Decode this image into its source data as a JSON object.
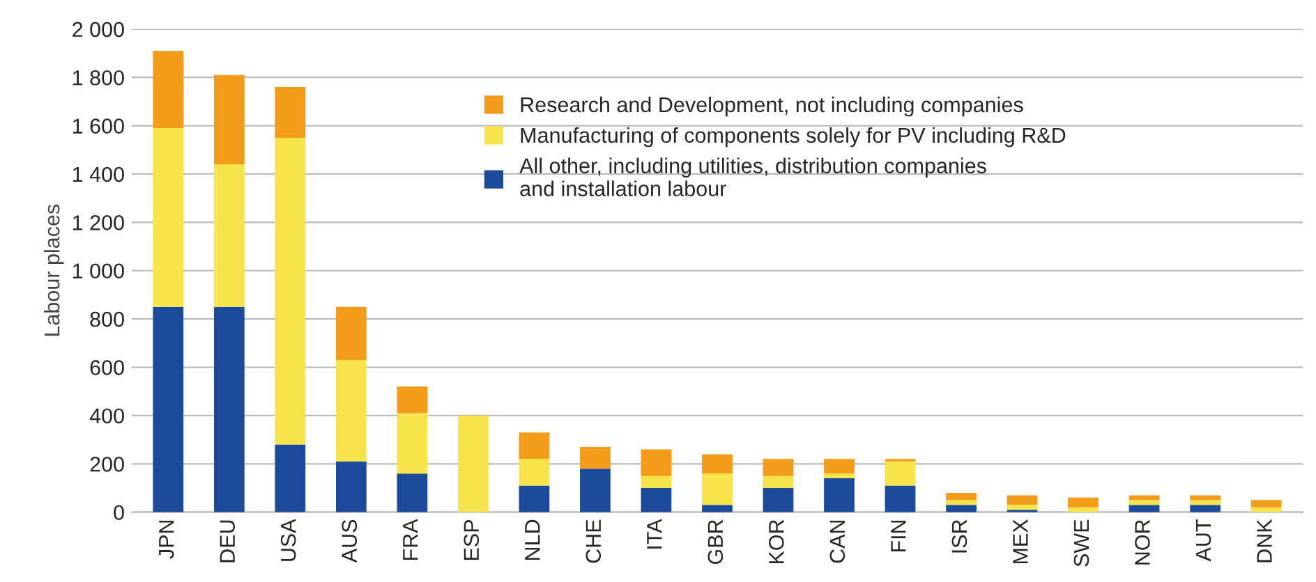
{
  "chart_data": {
    "type": "bar",
    "stacked": true,
    "ylabel": "Labour places",
    "categories": [
      "JPN",
      "DEU",
      "USA",
      "AUS",
      "FRA",
      "ESP",
      "NLD",
      "CHE",
      "ITA",
      "GBR",
      "KOR",
      "CAN",
      "FIN",
      "ISR",
      "MEX",
      "SWE",
      "NOR",
      "AUT",
      "DNK"
    ],
    "series": [
      {
        "name": "All other, including utilities, distribution companies\nand installation labour",
        "color": "#1c4b9c",
        "values": [
          850,
          850,
          280,
          210,
          160,
          0,
          110,
          180,
          100,
          30,
          100,
          140,
          110,
          30,
          10,
          0,
          30,
          30,
          0
        ]
      },
      {
        "name": "Manufacturing of components solely for PV including R&D",
        "color": "#f7e44c",
        "values": [
          740,
          590,
          1270,
          420,
          250,
          400,
          110,
          0,
          50,
          130,
          50,
          20,
          100,
          20,
          20,
          20,
          20,
          20,
          20
        ]
      },
      {
        "name": "Research and Development, not including companies",
        "color": "#f39c1c",
        "values": [
          320,
          370,
          210,
          220,
          110,
          0,
          110,
          90,
          110,
          80,
          70,
          60,
          10,
          30,
          40,
          40,
          20,
          20,
          30
        ]
      }
    ],
    "ylim": [
      0,
      2000
    ],
    "yticks": [
      {
        "value": 0,
        "label": "0"
      },
      {
        "value": 200,
        "label": "200"
      },
      {
        "value": 400,
        "label": "400"
      },
      {
        "value": 600,
        "label": "600"
      },
      {
        "value": 800,
        "label": "800"
      },
      {
        "value": 1000,
        "label": "1 000"
      },
      {
        "value": 1200,
        "label": "1 200"
      },
      {
        "value": 1400,
        "label": "1 400"
      },
      {
        "value": 1600,
        "label": "1 600"
      },
      {
        "value": 1800,
        "label": "1 800"
      },
      {
        "value": 2000,
        "label": "2 000"
      }
    ],
    "grid": "y",
    "legend": "top"
  }
}
